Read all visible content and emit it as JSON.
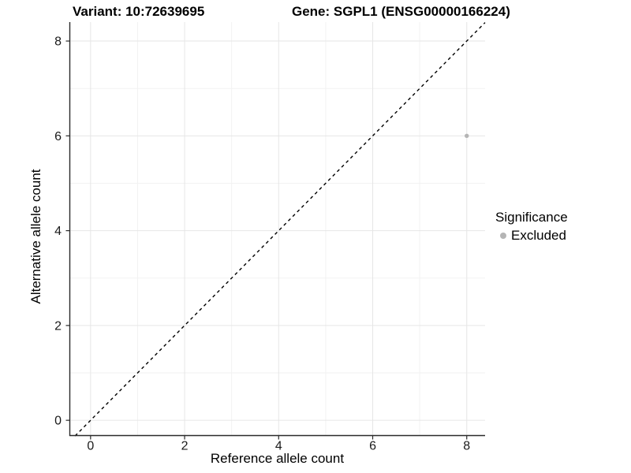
{
  "chart_data": {
    "type": "scatter",
    "titles": {
      "variant": "Variant: 10:72639695",
      "gene": "Gene: SGPL1 (ENSG00000166224)"
    },
    "xlabel": "Reference allele count",
    "ylabel": "Alternative allele count",
    "xlim": [
      -0.45,
      8.39
    ],
    "ylim": [
      -0.33,
      8.4
    ],
    "x_major_ticks": [
      0,
      2,
      4,
      6,
      8
    ],
    "y_major_ticks": [
      0,
      2,
      4,
      6,
      8
    ],
    "x_minor_gridlines": [
      1,
      3,
      5,
      7
    ],
    "y_minor_gridlines": [
      1,
      3,
      5,
      7
    ],
    "grid": "major and minor, light gray on white",
    "series": [
      {
        "name": "Excluded",
        "color": "#b5b5b5",
        "points": [
          {
            "x": 8,
            "y": 6
          }
        ]
      }
    ],
    "identity_line": {
      "style": "dashed",
      "equation": "y = x",
      "t_start": -0.33,
      "t_end": 8.39,
      "color": "#000000"
    },
    "legend": {
      "title": "Significance",
      "position": "right",
      "items": [
        {
          "label": "Excluded",
          "color": "#b5b5b5"
        }
      ]
    },
    "colors": {
      "grid_major": "#e6e6e6",
      "grid_minor": "#f2f2f2",
      "axis_line": "#2a2a2a",
      "tick_text": "#1a1a1a",
      "title_text": "#000000"
    }
  }
}
